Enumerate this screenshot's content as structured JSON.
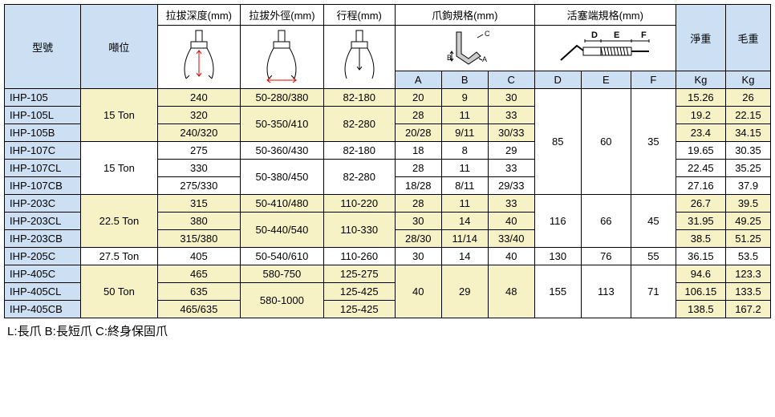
{
  "headers": {
    "model": "型號",
    "tonnage": "噸位",
    "depth": "拉拔深度(mm)",
    "od": "拉拔外徑(mm)",
    "stroke": "行程(mm)",
    "claw": "爪鉤規格(mm)",
    "piston": "活塞端規格(mm)",
    "netw": "淨重",
    "grossw": "毛重",
    "A": "A",
    "B": "B",
    "C": "C",
    "D": "D",
    "E": "E",
    "F": "F",
    "Kg": "Kg"
  },
  "note": "L:長爪 B:長短爪 C:終身保固爪",
  "col_widths": {
    "model": 92,
    "tonnage": 92,
    "depth": 100,
    "od": 100,
    "stroke": 86,
    "A": 56,
    "B": 56,
    "C": 56,
    "D": 56,
    "E": 60,
    "F": 54,
    "net": 60,
    "gross": 54
  },
  "rows": [
    {
      "model": "IHP-105",
      "tonnage": "15 Ton",
      "tonnage_rows": 3,
      "depth": "240",
      "od": "50-280/380",
      "od_rows": 1,
      "stroke": "82-180",
      "stroke_rows": 1,
      "A": "20",
      "B": "9",
      "C": "30",
      "D": "85",
      "D_rows": 6,
      "E": "60",
      "E_rows": 6,
      "F": "35",
      "F_rows": 6,
      "net": "15.26",
      "gross": "26",
      "shade": "yel"
    },
    {
      "model": "IHP-105L",
      "depth": "320",
      "od": "50-350/410",
      "od_rows": 2,
      "stroke": "82-280",
      "stroke_rows": 2,
      "A": "28",
      "B": "11",
      "C": "33",
      "net": "19.2",
      "gross": "22.15",
      "shade": "yel"
    },
    {
      "model": "IHP-105B",
      "depth": "240/320",
      "A": "20/28",
      "B": "9/11",
      "C": "30/33",
      "net": "23.4",
      "gross": "34.15",
      "shade": "yel"
    },
    {
      "model": "IHP-107C",
      "tonnage": "15 Ton",
      "tonnage_rows": 3,
      "depth": "275",
      "od": "50-360/430",
      "od_rows": 1,
      "stroke": "82-180",
      "stroke_rows": 1,
      "A": "18",
      "B": "8",
      "C": "29",
      "net": "19.65",
      "gross": "30.35",
      "shade": "wht"
    },
    {
      "model": "IHP-107CL",
      "depth": "330",
      "od": "50-380/450",
      "od_rows": 2,
      "stroke": "82-280",
      "stroke_rows": 2,
      "A": "28",
      "B": "11",
      "C": "33",
      "net": "22.45",
      "gross": "35.25",
      "shade": "wht"
    },
    {
      "model": "IHP-107CB",
      "depth": "275/330",
      "A": "18/28",
      "B": "8/11",
      "C": "29/33",
      "net": "27.16",
      "gross": "37.9",
      "shade": "wht"
    },
    {
      "model": "IHP-203C",
      "tonnage": "22.5 Ton",
      "tonnage_rows": 3,
      "depth": "315",
      "od": "50-410/480",
      "od_rows": 1,
      "stroke": "110-220",
      "stroke_rows": 1,
      "A": "28",
      "B": "11",
      "C": "33",
      "D": "116",
      "D_rows": 3,
      "E": "66",
      "E_rows": 3,
      "F": "45",
      "F_rows": 3,
      "net": "26.7",
      "gross": "39.5",
      "shade": "yel"
    },
    {
      "model": "IHP-203CL",
      "depth": "380",
      "od": "50-440/540",
      "od_rows": 2,
      "stroke": "110-330",
      "stroke_rows": 2,
      "A": "30",
      "B": "14",
      "C": "40",
      "net": "31.95",
      "gross": "49.25",
      "shade": "yel"
    },
    {
      "model": "IHP-203CB",
      "depth": "315/380",
      "A": "28/30",
      "B": "11/14",
      "C": "33/40",
      "net": "38.5",
      "gross": "51.25",
      "shade": "yel"
    },
    {
      "model": "IHP-205C",
      "tonnage": "27.5 Ton",
      "tonnage_rows": 1,
      "depth": "405",
      "od": "50-540/610",
      "od_rows": 1,
      "stroke": "110-260",
      "stroke_rows": 1,
      "A": "30",
      "B": "14",
      "C": "40",
      "D": "130",
      "D_rows": 1,
      "E": "76",
      "E_rows": 1,
      "F": "55",
      "F_rows": 1,
      "net": "36.15",
      "gross": "53.5",
      "shade": "wht"
    },
    {
      "model": "IHP-405C",
      "tonnage": "50 Ton",
      "tonnage_rows": 3,
      "depth": "465",
      "od": "580-750",
      "od_rows": 1,
      "stroke": "125-275",
      "stroke_rows": 1,
      "A": "40",
      "A_rows": 3,
      "B": "29",
      "B_rows": 3,
      "C": "48",
      "C_rows": 3,
      "D": "155",
      "D_rows": 3,
      "E": "113",
      "E_rows": 3,
      "F": "71",
      "F_rows": 3,
      "net": "94.6",
      "gross": "123.3",
      "shade": "yel"
    },
    {
      "model": "IHP-405CL",
      "depth": "635",
      "od": "580-1000",
      "od_rows": 2,
      "stroke": "125-425",
      "stroke_rows": 1,
      "net": "106.15",
      "gross": "133.5",
      "shade": "yel"
    },
    {
      "model": "IHP-405CB",
      "depth": "465/635",
      "stroke": "125-425",
      "stroke_rows": 1,
      "net": "138.5",
      "gross": "167.2",
      "shade": "yel"
    }
  ]
}
